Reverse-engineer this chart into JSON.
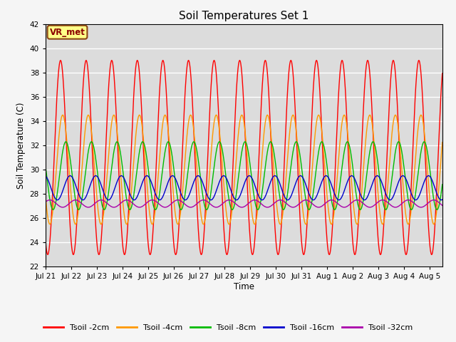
{
  "title": "Soil Temperatures Set 1",
  "ylabel": "Soil Temperature (C)",
  "xlabel": "Time",
  "ylim": [
    22,
    42
  ],
  "yticks": [
    22,
    24,
    26,
    28,
    30,
    32,
    34,
    36,
    38,
    40,
    42
  ],
  "xtick_labels": [
    "Jul 21",
    "Jul 22",
    "Jul 23",
    "Jul 24",
    "Jul 25",
    "Jul 26",
    "Jul 27",
    "Jul 28",
    "Jul 29",
    "Jul 30",
    "Jul 31",
    "Aug 1",
    "Aug 2",
    "Aug 3",
    "Aug 4",
    "Aug 5"
  ],
  "label_text": "VR_met",
  "plot_bg_color": "#dcdcdc",
  "fig_bg_color": "#f5f5f5",
  "line_colors": [
    "#ff0000",
    "#ff9900",
    "#00bb00",
    "#0000cc",
    "#aa00aa"
  ],
  "line_labels": [
    "Tsoil -2cm",
    "Tsoil -4cm",
    "Tsoil -8cm",
    "Tsoil -16cm",
    "Tsoil -32cm"
  ],
  "n_days": 15.5,
  "pts_per_day": 96
}
